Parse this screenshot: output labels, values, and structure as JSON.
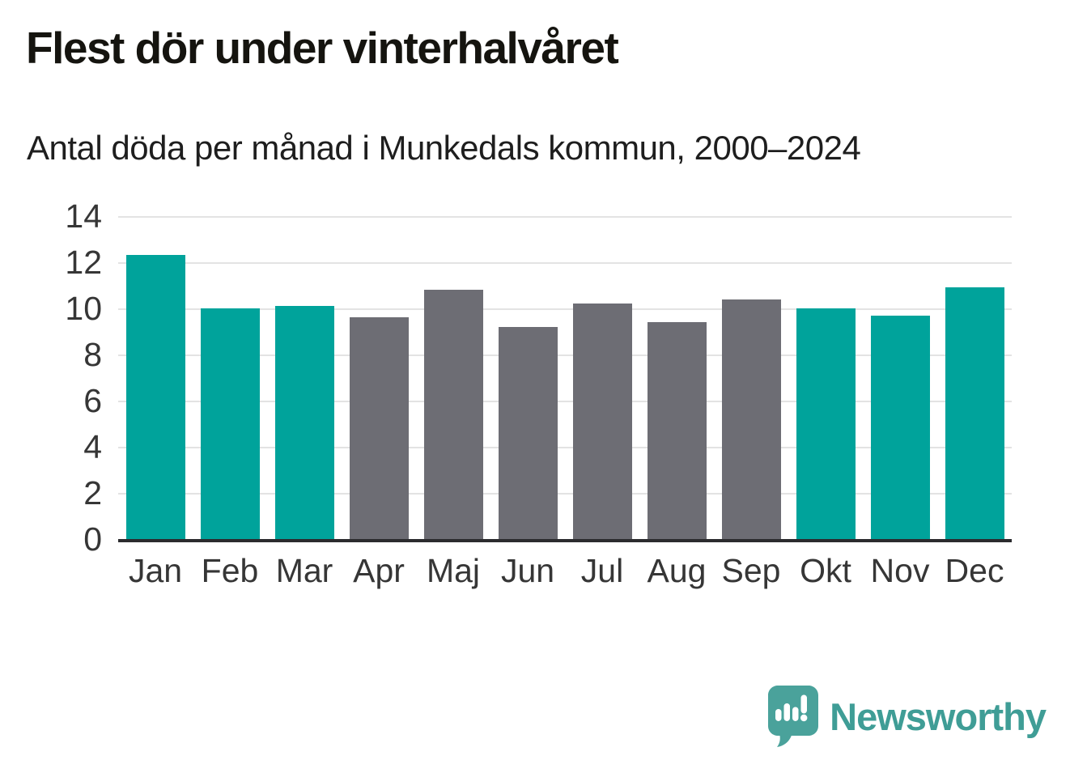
{
  "header": {
    "title": "Flest dör under vinterhalvåret",
    "subtitle": "Antal döda per månad i Munkedals kommun, 2000–2024"
  },
  "chart_data": {
    "type": "bar",
    "title": "Flest dör under vinterhalvåret",
    "subtitle": "Antal döda per månad i Munkedals kommun, 2000–2024",
    "categories": [
      "Jan",
      "Feb",
      "Mar",
      "Apr",
      "Maj",
      "Jun",
      "Jul",
      "Aug",
      "Sep",
      "Okt",
      "Nov",
      "Dec"
    ],
    "values": [
      12.3,
      10.0,
      10.1,
      9.6,
      10.8,
      9.2,
      10.2,
      9.4,
      10.4,
      10.0,
      9.7,
      10.9
    ],
    "highlight": [
      true,
      true,
      true,
      false,
      false,
      false,
      false,
      false,
      false,
      true,
      true,
      true
    ],
    "highlighted_months": [
      "Jan",
      "Feb",
      "Mar",
      "Okt",
      "Nov",
      "Dec"
    ],
    "xlabel": "",
    "ylabel": "",
    "ylim": [
      0,
      14
    ],
    "yticks": [
      0,
      2,
      4,
      6,
      8,
      10,
      12,
      14
    ],
    "grid": true,
    "legend": false,
    "colors": {
      "highlight": "#00a39b",
      "default": "#6d6d74",
      "gridline": "#e3e3e3",
      "axis": "#2b2b2e",
      "tick_text": "#363636"
    }
  },
  "footer": {
    "logo_text": "Newsworthy",
    "logo_color": "#3f9d96",
    "logo_icon": "speech-bubble-bar-chart-icon"
  }
}
